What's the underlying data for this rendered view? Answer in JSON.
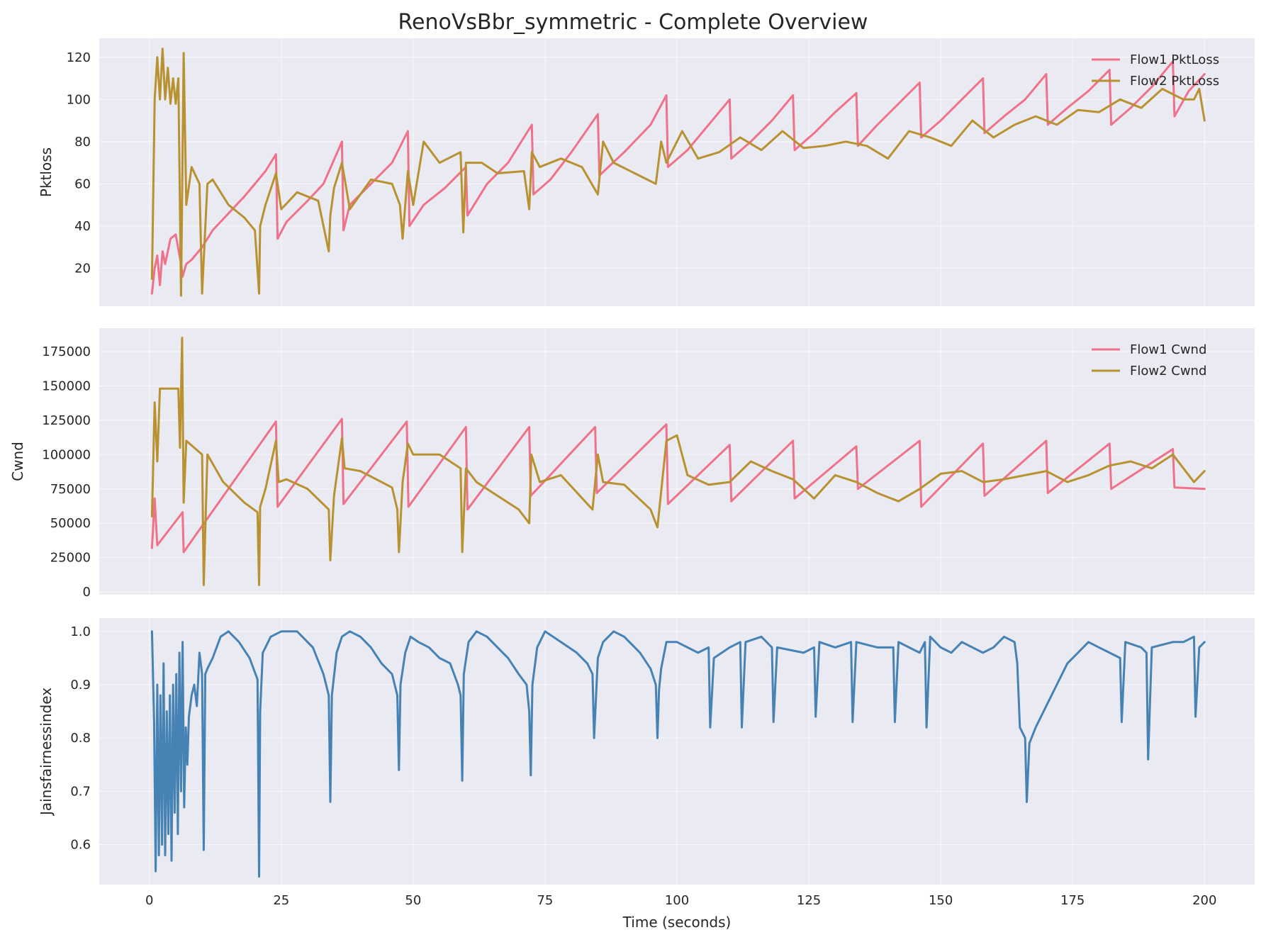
{
  "title": "RenoVsBbr_symmetric - Complete Overview",
  "chart_data": [
    {
      "type": "line",
      "ylabel": "Pktloss",
      "xlim": [
        -9.5,
        209.5
      ],
      "ylim": [
        2,
        129
      ],
      "xticks": [
        0,
        25,
        50,
        75,
        100,
        125,
        150,
        175,
        200
      ],
      "yticks": [
        20,
        40,
        60,
        80,
        100,
        120
      ],
      "grid": true,
      "legend_position": "top-right",
      "series": [
        {
          "name": "Flow1 PktLoss",
          "color": "#f0718a",
          "x": [
            0.5,
            1.0,
            1.5,
            2.0,
            2.5,
            3.0,
            4.0,
            5.0,
            6.0,
            6.3,
            7.0,
            8.0,
            10.0,
            12.0,
            15.0,
            18.0,
            20.0,
            22.0,
            24.0,
            24.3,
            26.0,
            30.0,
            33.0,
            36.5,
            36.8,
            38.0,
            42.0,
            46.0,
            49.0,
            49.3,
            52.0,
            56.0,
            60.0,
            60.3,
            64.0,
            68.0,
            72.5,
            72.8,
            76.0,
            80.0,
            85.0,
            85.3,
            90.0,
            95.0,
            98.0,
            98.3,
            102.0,
            106.0,
            110.0,
            110.3,
            114.0,
            118.0,
            122.0,
            122.3,
            126.0,
            130.0,
            134.0,
            134.3,
            138.0,
            142.0,
            146.0,
            146.3,
            150.0,
            154.0,
            158.0,
            158.3,
            162.0,
            166.0,
            170.0,
            170.3,
            174.0,
            178.0,
            182.0,
            182.3,
            186.0,
            190.0,
            194.0,
            194.3,
            197.0,
            200.0
          ],
          "y": [
            8,
            20,
            26,
            12,
            28,
            22,
            34,
            36,
            22,
            16,
            22,
            24,
            30,
            38,
            46,
            54,
            60,
            66,
            74,
            34,
            42,
            52,
            60,
            80,
            38,
            50,
            60,
            70,
            85,
            40,
            50,
            58,
            68,
            45,
            60,
            70,
            88,
            55,
            62,
            75,
            93,
            64,
            75,
            88,
            102,
            68,
            76,
            88,
            100,
            72,
            80,
            90,
            102,
            76,
            84,
            94,
            103,
            78,
            88,
            98,
            108,
            82,
            90,
            100,
            110,
            84,
            92,
            100,
            112,
            88,
            96,
            104,
            114,
            88,
            96,
            106,
            118,
            92,
            104,
            112
          ]
        },
        {
          "name": "Flow2 PktLoss",
          "color": "#b89230",
          "x": [
            0.5,
            1.0,
            1.5,
            2.0,
            2.5,
            3.0,
            3.5,
            4.0,
            4.5,
            5.0,
            5.5,
            6.0,
            6.5,
            7.0,
            8.0,
            9.5,
            10.0,
            11.0,
            12.0,
            15.0,
            18.0,
            20.0,
            20.8,
            21.0,
            22.0,
            24.0,
            25.0,
            28.0,
            32.0,
            34.0,
            34.3,
            35.0,
            36.5,
            38.0,
            42.0,
            46.0,
            47.5,
            48.0,
            49.0,
            50.0,
            52.0,
            55.0,
            59.0,
            59.5,
            60.0,
            63.0,
            66.0,
            71.0,
            72.0,
            72.5,
            74.0,
            78.0,
            82.0,
            85.0,
            86.0,
            88.0,
            92.0,
            96.0,
            97.0,
            98.0,
            101.0,
            104.0,
            108.0,
            112.0,
            116.0,
            120.0,
            124.0,
            128.0,
            132.0,
            136.0,
            140.0,
            144.0,
            148.0,
            152.0,
            156.0,
            160.0,
            164.0,
            168.0,
            172.0,
            176.0,
            180.0,
            184.0,
            188.0,
            192.0,
            196.0,
            198.0,
            199.0,
            200.0
          ],
          "y": [
            15,
            100,
            120,
            100,
            124,
            100,
            115,
            98,
            110,
            98,
            110,
            7,
            122,
            50,
            68,
            60,
            8,
            60,
            62,
            50,
            44,
            38,
            8,
            40,
            50,
            65,
            48,
            56,
            52,
            28,
            45,
            58,
            70,
            48,
            62,
            60,
            50,
            34,
            66,
            50,
            80,
            70,
            75,
            37,
            70,
            70,
            65,
            66,
            48,
            75,
            68,
            72,
            68,
            55,
            80,
            70,
            65,
            60,
            80,
            70,
            85,
            72,
            75,
            82,
            76,
            85,
            77,
            78,
            80,
            78,
            72,
            85,
            82,
            78,
            90,
            82,
            88,
            92,
            88,
            95,
            94,
            100,
            96,
            105,
            100,
            100,
            105,
            90
          ]
        }
      ]
    },
    {
      "type": "line",
      "ylabel": "Cwnd",
      "xlim": [
        -9.5,
        209.5
      ],
      "ylim": [
        -2000,
        192000
      ],
      "xticks": [
        0,
        25,
        50,
        75,
        100,
        125,
        150,
        175,
        200
      ],
      "yticks": [
        0,
        25000,
        50000,
        75000,
        100000,
        125000,
        150000,
        175000
      ],
      "grid": true,
      "legend_position": "top-right",
      "series": [
        {
          "name": "Flow1 Cwnd",
          "color": "#f0718a",
          "x": [
            0.5,
            1.0,
            1.5,
            6.3,
            6.5,
            24.0,
            24.3,
            36.5,
            36.8,
            48.8,
            49.1,
            60.0,
            60.3,
            72.0,
            72.3,
            84.5,
            84.8,
            98.0,
            98.3,
            110.0,
            110.3,
            122.0,
            122.3,
            134.0,
            134.3,
            146.0,
            146.3,
            158.0,
            158.3,
            170.0,
            170.3,
            182.0,
            182.3,
            194.0,
            194.3,
            200.0
          ],
          "y": [
            32000,
            68000,
            34000,
            58000,
            29000,
            124000,
            62000,
            126000,
            64000,
            124000,
            62000,
            120000,
            60000,
            120000,
            70000,
            120000,
            72000,
            122000,
            64000,
            107000,
            66000,
            110000,
            68000,
            106000,
            75000,
            110000,
            62000,
            108000,
            70000,
            110000,
            72000,
            108000,
            75000,
            104000,
            76000,
            75000
          ]
        },
        {
          "name": "Flow2 Cwnd",
          "color": "#b89230",
          "x": [
            0.5,
            1.0,
            1.5,
            2.0,
            5.5,
            5.8,
            6.2,
            6.5,
            7.0,
            10.0,
            10.3,
            11.0,
            14.0,
            18.0,
            20.5,
            20.8,
            21.0,
            22.0,
            24.0,
            24.5,
            26.0,
            30.0,
            34.0,
            34.3,
            35.0,
            36.5,
            37.0,
            40.0,
            46.0,
            47.0,
            47.3,
            48.0,
            49.0,
            50.0,
            55.0,
            59.0,
            59.3,
            60.0,
            62.0,
            66.0,
            70.0,
            72.0,
            72.4,
            74.0,
            78.0,
            84.0,
            85.0,
            86.0,
            90.0,
            95.0,
            96.0,
            96.3,
            98.0,
            100.0,
            102.0,
            106.0,
            110.0,
            114.0,
            118.0,
            122.0,
            126.0,
            130.0,
            134.0,
            138.0,
            142.0,
            146.0,
            150.0,
            154.0,
            158.0,
            162.0,
            166.0,
            170.0,
            174.0,
            178.0,
            182.0,
            186.0,
            190.0,
            194.0,
            198.0,
            200.0
          ],
          "y": [
            55000,
            138000,
            95000,
            148000,
            148000,
            105000,
            185000,
            65000,
            110000,
            100000,
            5000,
            100000,
            80000,
            65000,
            58000,
            5000,
            62000,
            75000,
            110000,
            80000,
            82000,
            75000,
            60000,
            23000,
            70000,
            112000,
            90000,
            88000,
            76000,
            60000,
            29000,
            80000,
            108000,
            100000,
            100000,
            90000,
            29000,
            90000,
            80000,
            70000,
            60000,
            50000,
            100000,
            80000,
            85000,
            60000,
            100000,
            80000,
            78000,
            60000,
            50000,
            47000,
            110000,
            114000,
            85000,
            78000,
            80000,
            95000,
            88000,
            82000,
            68000,
            85000,
            80000,
            72000,
            66000,
            75000,
            86000,
            88000,
            80000,
            82000,
            85000,
            88000,
            80000,
            85000,
            92000,
            95000,
            90000,
            100000,
            80000,
            88000
          ]
        }
      ]
    },
    {
      "type": "line",
      "ylabel": "Jainsfairnessindex",
      "xlabel": "Time (seconds)",
      "xlim": [
        -9.5,
        209.5
      ],
      "ylim": [
        0.525,
        1.025
      ],
      "xticks": [
        0,
        25,
        50,
        75,
        100,
        125,
        150,
        175,
        200
      ],
      "yticks": [
        0.6,
        0.7,
        0.8,
        0.9,
        1.0
      ],
      "grid": true,
      "series": [
        {
          "name": "",
          "color": "#4682b4",
          "x": [
            0.5,
            0.9,
            1.2,
            1.5,
            1.8,
            2.1,
            2.4,
            2.7,
            3.0,
            3.3,
            3.6,
            3.9,
            4.2,
            4.5,
            4.8,
            5.1,
            5.4,
            5.7,
            6.0,
            6.3,
            6.6,
            6.9,
            7.2,
            7.5,
            8.0,
            8.5,
            9.0,
            9.5,
            10.0,
            10.3,
            10.6,
            11.0,
            12.0,
            13.5,
            15.0,
            17.0,
            19.0,
            20.5,
            20.8,
            21.0,
            21.5,
            22.0,
            23.0,
            25.0,
            28.0,
            31.0,
            33.0,
            34.0,
            34.3,
            34.6,
            35.5,
            36.5,
            38.0,
            40.0,
            42.0,
            44.0,
            46.0,
            47.0,
            47.3,
            47.6,
            48.5,
            49.5,
            51.0,
            53.0,
            55.0,
            57.0,
            58.5,
            59.0,
            59.3,
            59.6,
            60.5,
            62.0,
            64.0,
            66.0,
            68.0,
            70.0,
            71.5,
            72.0,
            72.3,
            72.6,
            73.5,
            75.0,
            78.0,
            81.0,
            83.0,
            84.0,
            84.3,
            85.0,
            86.0,
            88.0,
            90.0,
            93.0,
            95.0,
            96.0,
            96.3,
            96.6,
            97.0,
            98.0,
            100.0,
            104.0,
            106.0,
            106.3,
            107.0,
            110.0,
            112.0,
            112.3,
            113.0,
            116.0,
            118.0,
            118.3,
            119.0,
            124.0,
            126.0,
            126.3,
            127.0,
            130.0,
            133.0,
            133.3,
            134.0,
            138.0,
            141.0,
            141.3,
            142.0,
            146.0,
            147.0,
            147.3,
            148.0,
            150.0,
            152.0,
            154.0,
            158.0,
            160.0,
            162.0,
            164.0,
            164.5,
            165.0,
            166.0,
            166.3,
            166.8,
            168.0,
            170.0,
            172.0,
            174.0,
            176.0,
            178.0,
            180.0,
            182.0,
            184.0,
            184.3,
            185.0,
            188.0,
            189.0,
            189.3,
            190.0,
            194.0,
            196.0,
            198.0,
            198.3,
            199.0,
            200.0
          ],
          "y": [
            1.0,
            0.83,
            0.55,
            0.9,
            0.58,
            0.88,
            0.6,
            0.94,
            0.58,
            0.85,
            0.62,
            0.88,
            0.57,
            0.9,
            0.66,
            0.92,
            0.62,
            0.96,
            0.7,
            0.98,
            0.67,
            0.82,
            0.75,
            0.84,
            0.88,
            0.9,
            0.86,
            0.96,
            0.92,
            0.59,
            0.92,
            0.93,
            0.95,
            0.99,
            1.0,
            0.98,
            0.95,
            0.91,
            0.54,
            0.85,
            0.96,
            0.97,
            0.99,
            1.0,
            1.0,
            0.97,
            0.92,
            0.88,
            0.68,
            0.88,
            0.96,
            0.99,
            1.0,
            0.99,
            0.97,
            0.94,
            0.92,
            0.88,
            0.74,
            0.9,
            0.96,
            0.99,
            0.98,
            0.97,
            0.95,
            0.94,
            0.9,
            0.88,
            0.72,
            0.92,
            0.98,
            1.0,
            0.99,
            0.97,
            0.95,
            0.92,
            0.9,
            0.85,
            0.73,
            0.9,
            0.97,
            1.0,
            0.98,
            0.96,
            0.94,
            0.92,
            0.8,
            0.95,
            0.98,
            1.0,
            0.99,
            0.96,
            0.93,
            0.9,
            0.8,
            0.89,
            0.93,
            0.98,
            0.98,
            0.96,
            0.97,
            0.82,
            0.95,
            0.97,
            0.98,
            0.82,
            0.98,
            0.99,
            0.97,
            0.83,
            0.97,
            0.96,
            0.97,
            0.84,
            0.98,
            0.97,
            0.98,
            0.83,
            0.98,
            0.97,
            0.97,
            0.83,
            0.98,
            0.96,
            0.98,
            0.82,
            0.99,
            0.97,
            0.96,
            0.98,
            0.96,
            0.97,
            0.99,
            0.98,
            0.94,
            0.82,
            0.8,
            0.68,
            0.79,
            0.82,
            0.86,
            0.9,
            0.94,
            0.96,
            0.98,
            0.97,
            0.96,
            0.95,
            0.83,
            0.98,
            0.97,
            0.96,
            0.76,
            0.97,
            0.98,
            0.98,
            0.99,
            0.84,
            0.97,
            0.98
          ]
        }
      ]
    }
  ]
}
